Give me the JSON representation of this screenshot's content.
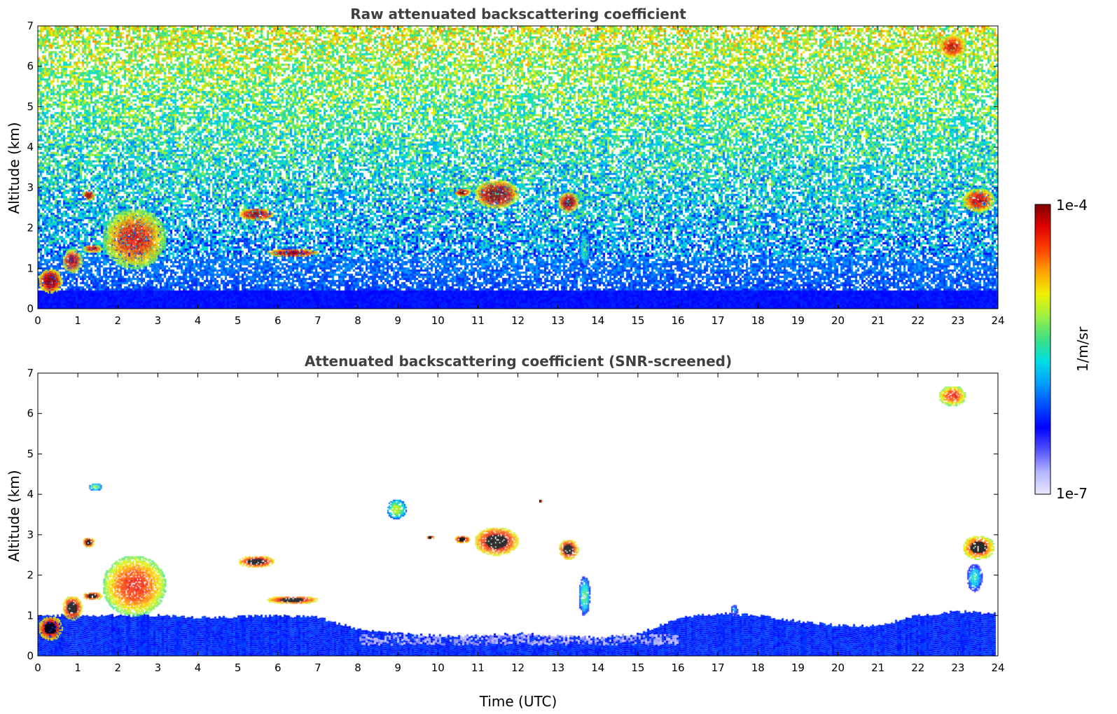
{
  "chart_data": [
    {
      "type": "heatmap",
      "title": "Raw attenuated backscattering coefficient",
      "xlabel": "",
      "ylabel": "Altitude (km)",
      "xlim": [
        0,
        24
      ],
      "ylim": [
        0,
        7
      ],
      "xticks": [
        "0",
        "1",
        "2",
        "3",
        "4",
        "5",
        "6",
        "7",
        "8",
        "9",
        "10",
        "11",
        "12",
        "13",
        "14",
        "15",
        "16",
        "17",
        "18",
        "19",
        "20",
        "21",
        "22",
        "23",
        "24"
      ],
      "yticks": [
        "0",
        "1",
        "2",
        "3",
        "4",
        "5",
        "6",
        "7"
      ],
      "background": "noisy",
      "features": [
        {
          "kind": "layer",
          "x": [
            0.0,
            0.6
          ],
          "y": [
            0.0,
            0.6
          ],
          "level": 0.25
        },
        {
          "kind": "layer",
          "x": [
            0.6,
            23.9
          ],
          "y": [
            0.0,
            0.5
          ],
          "level": 0.22
        },
        {
          "kind": "cloud",
          "x": [
            0.0,
            0.6
          ],
          "y": [
            0.4,
            1.0
          ],
          "level": 1.0
        },
        {
          "kind": "cloud",
          "x": [
            0.6,
            1.1
          ],
          "y": [
            0.9,
            1.5
          ],
          "level": 0.95
        },
        {
          "kind": "cloud",
          "x": [
            1.1,
            1.6
          ],
          "y": [
            1.4,
            1.6
          ],
          "level": 0.95
        },
        {
          "kind": "cloud",
          "x": [
            1.1,
            1.4
          ],
          "y": [
            2.7,
            2.95
          ],
          "level": 1.0
        },
        {
          "kind": "cloud",
          "x": [
            1.6,
            3.2
          ],
          "y": [
            1.0,
            2.5
          ],
          "level": 0.9
        },
        {
          "kind": "cloud",
          "x": [
            5.0,
            5.9
          ],
          "y": [
            2.2,
            2.5
          ],
          "level": 1.0
        },
        {
          "kind": "cloud",
          "x": [
            5.7,
            7.0
          ],
          "y": [
            1.3,
            1.5
          ],
          "level": 1.0
        },
        {
          "kind": "cloud",
          "x": [
            9.7,
            9.9
          ],
          "y": [
            2.9,
            3.0
          ],
          "level": 1.0
        },
        {
          "kind": "cloud",
          "x": [
            10.4,
            10.8
          ],
          "y": [
            2.8,
            3.0
          ],
          "level": 1.0
        },
        {
          "kind": "cloud",
          "x": [
            10.9,
            12.0
          ],
          "y": [
            2.5,
            3.2
          ],
          "level": 1.0
        },
        {
          "kind": "cloud",
          "x": [
            12.5,
            12.6
          ],
          "y": [
            3.8,
            3.9
          ],
          "level": 1.0
        },
        {
          "kind": "cloud",
          "x": [
            13.0,
            13.5
          ],
          "y": [
            2.4,
            2.9
          ],
          "level": 1.0
        },
        {
          "kind": "cloud",
          "x": [
            13.5,
            13.8
          ],
          "y": [
            1.0,
            2.0
          ],
          "level": 0.55
        },
        {
          "kind": "cloud",
          "x": [
            22.5,
            23.2
          ],
          "y": [
            6.2,
            6.8
          ],
          "level": 0.95
        },
        {
          "kind": "cloud",
          "x": [
            23.1,
            23.9
          ],
          "y": [
            2.4,
            3.0
          ],
          "level": 0.95
        }
      ]
    },
    {
      "type": "heatmap",
      "title": "Attenuated backscattering coefficient (SNR-screened)",
      "xlabel": "Time (UTC)",
      "ylabel": "Altitude (km)",
      "xlim": [
        0,
        24
      ],
      "ylim": [
        0,
        7
      ],
      "xticks": [
        "0",
        "1",
        "2",
        "3",
        "4",
        "5",
        "6",
        "7",
        "8",
        "9",
        "10",
        "11",
        "12",
        "13",
        "14",
        "15",
        "16",
        "17",
        "18",
        "19",
        "20",
        "21",
        "22",
        "23",
        "24"
      ],
      "yticks": [
        "0",
        "1",
        "2",
        "3",
        "4",
        "5",
        "6",
        "7"
      ],
      "background": "screened",
      "boundary_layer_top_km": [
        [
          0,
          1.0
        ],
        [
          2,
          1.0
        ],
        [
          3,
          1.0
        ],
        [
          4,
          0.95
        ],
        [
          6,
          1.0
        ],
        [
          7,
          0.95
        ],
        [
          8,
          0.65
        ],
        [
          9,
          0.55
        ],
        [
          10,
          0.5
        ],
        [
          11,
          0.5
        ],
        [
          12,
          0.55
        ],
        [
          13,
          0.5
        ],
        [
          14,
          0.45
        ],
        [
          15,
          0.55
        ],
        [
          16,
          0.95
        ],
        [
          17,
          1.05
        ],
        [
          18,
          1.0
        ],
        [
          19,
          0.85
        ],
        [
          20,
          0.75
        ],
        [
          21,
          0.75
        ],
        [
          22,
          1.0
        ],
        [
          23,
          1.1
        ],
        [
          23.9,
          1.05
        ]
      ],
      "features": [
        {
          "kind": "cloud",
          "x": [
            0.0,
            0.6
          ],
          "y": [
            0.4,
            1.0
          ],
          "level": 1.0
        },
        {
          "kind": "cloud",
          "x": [
            0.6,
            1.1
          ],
          "y": [
            0.9,
            1.5
          ],
          "level": 1.0
        },
        {
          "kind": "cloud",
          "x": [
            1.1,
            1.6
          ],
          "y": [
            1.4,
            1.6
          ],
          "level": 1.0
        },
        {
          "kind": "cloud",
          "x": [
            1.1,
            1.4
          ],
          "y": [
            2.7,
            2.95
          ],
          "level": 1.0
        },
        {
          "kind": "cloud",
          "x": [
            1.25,
            1.6
          ],
          "y": [
            4.1,
            4.3
          ],
          "level": 0.6
        },
        {
          "kind": "cloud",
          "x": [
            1.6,
            3.2
          ],
          "y": [
            1.0,
            2.5
          ],
          "level": 0.9
        },
        {
          "kind": "cloud",
          "x": [
            5.0,
            5.9
          ],
          "y": [
            2.2,
            2.5
          ],
          "level": 1.0
        },
        {
          "kind": "cloud",
          "x": [
            5.7,
            7.0
          ],
          "y": [
            1.3,
            1.5
          ],
          "level": 1.0
        },
        {
          "kind": "cloud",
          "x": [
            8.7,
            9.2
          ],
          "y": [
            3.4,
            3.9
          ],
          "level": 0.65
        },
        {
          "kind": "cloud",
          "x": [
            9.7,
            9.9
          ],
          "y": [
            2.9,
            3.0
          ],
          "level": 1.0
        },
        {
          "kind": "cloud",
          "x": [
            10.4,
            10.8
          ],
          "y": [
            2.8,
            3.0
          ],
          "level": 1.0
        },
        {
          "kind": "cloud",
          "x": [
            10.9,
            12.0
          ],
          "y": [
            2.5,
            3.2
          ],
          "level": 1.0
        },
        {
          "kind": "cloud",
          "x": [
            12.5,
            12.6
          ],
          "y": [
            3.8,
            3.9
          ],
          "level": 1.0
        },
        {
          "kind": "cloud",
          "x": [
            13.0,
            13.5
          ],
          "y": [
            2.4,
            2.9
          ],
          "level": 1.0
        },
        {
          "kind": "cloud",
          "x": [
            13.5,
            13.8
          ],
          "y": [
            1.0,
            2.0
          ],
          "level": 0.55
        },
        {
          "kind": "cloud",
          "x": [
            17.3,
            17.5
          ],
          "y": [
            1.0,
            1.3
          ],
          "level": 0.4
        },
        {
          "kind": "cloud",
          "x": [
            22.5,
            23.2
          ],
          "y": [
            6.2,
            6.7
          ],
          "level": 0.9
        },
        {
          "kind": "cloud",
          "x": [
            23.1,
            23.9
          ],
          "y": [
            2.4,
            3.0
          ],
          "level": 0.95
        },
        {
          "kind": "cloud",
          "x": [
            23.2,
            23.6
          ],
          "y": [
            1.6,
            2.3
          ],
          "level": 0.5
        }
      ]
    }
  ],
  "colorbar": {
    "label": "1/m/sr",
    "max_label": "1e-4",
    "min_label": "1e-7",
    "colors": [
      "#e8e8ff",
      "#b4b4ff",
      "#5050ff",
      "#0000ff",
      "#0050ff",
      "#00a0ff",
      "#00e0e0",
      "#40e080",
      "#a0f040",
      "#f0f000",
      "#ffa000",
      "#ff4000",
      "#e00000",
      "#800000"
    ]
  }
}
